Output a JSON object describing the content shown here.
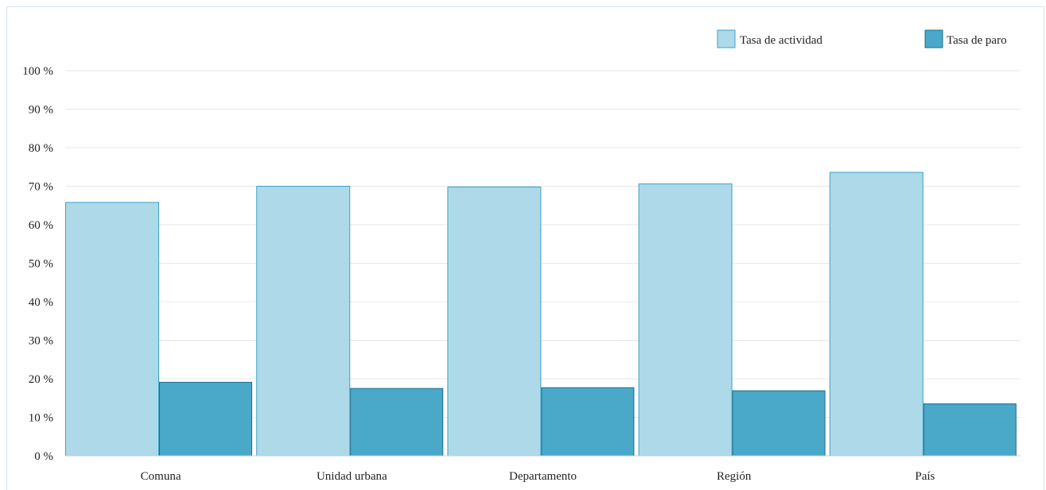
{
  "chart_data": {
    "type": "bar",
    "categories": [
      "Comuna",
      "Unidad urbana",
      "Departamento",
      "Región",
      "País"
    ],
    "series": [
      {
        "name": "Tasa de actividad",
        "values": [
          65.8,
          70.0,
          69.8,
          70.6,
          73.6
        ]
      },
      {
        "name": "Tasa de paro",
        "values": [
          19.1,
          17.5,
          17.7,
          16.9,
          13.5
        ]
      }
    ],
    "y_ticks": [
      "0 %",
      "10 %",
      "20 %",
      "30 %",
      "40 %",
      "50 %",
      "60 %",
      "70 %",
      "80 %",
      "90 %",
      "100 %"
    ],
    "ylim": [
      0,
      100
    ],
    "grid": true,
    "legend_position": "top-right",
    "colors": {
      "actividad_fill": "#add9e9",
      "actividad_stroke": "#3aa3c6",
      "paro_fill": "#4aa8c8",
      "paro_stroke": "#1f6f8f",
      "grid": "#e3e8ec",
      "axis": "#c8d0d6"
    }
  }
}
